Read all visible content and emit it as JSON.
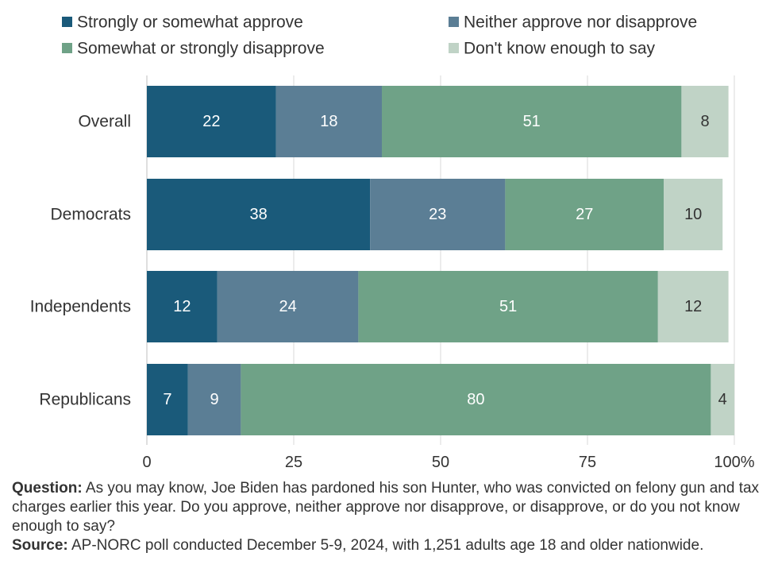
{
  "chart_data": {
    "type": "bar",
    "orientation": "horizontal",
    "stacked": true,
    "categories": [
      "Overall",
      "Democrats",
      "Independents",
      "Republicans"
    ],
    "series": [
      {
        "name": "Strongly or somewhat approve",
        "values": [
          22,
          38,
          12,
          7
        ],
        "color": "#1a5a7a",
        "label_color": "#ffffff"
      },
      {
        "name": "Neither approve nor disapprove",
        "values": [
          18,
          23,
          24,
          9
        ],
        "color": "#5b7e95",
        "label_color": "#ffffff"
      },
      {
        "name": "Somewhat or strongly disapprove",
        "values": [
          51,
          27,
          51,
          80
        ],
        "color": "#6fa287",
        "label_color": "#ffffff"
      },
      {
        "name": "Don't know enough to say",
        "values": [
          8,
          10,
          12,
          4
        ],
        "color": "#c0d3c6",
        "label_color": "#333333"
      }
    ],
    "xlim": [
      0,
      100
    ],
    "x_ticks": [
      "0",
      "25",
      "50",
      "75",
      "100%"
    ],
    "grid": "vertical",
    "legend_position": "top"
  },
  "notes": {
    "question_label": "Question:",
    "question_text": " As you may know, Joe Biden has pardoned his son Hunter, who was convicted on felony gun and tax charges earlier this year. Do you approve, neither approve nor disapprove, or disapprove, or do you not know enough to say?",
    "source_label": "Source:",
    "source_text": " AP-NORC poll conducted December 5-9, 2024, with 1,251 adults age 18 and older nationwide."
  },
  "colors": {
    "grid": "#d9d9d9",
    "axis": "#bfbfbf"
  }
}
